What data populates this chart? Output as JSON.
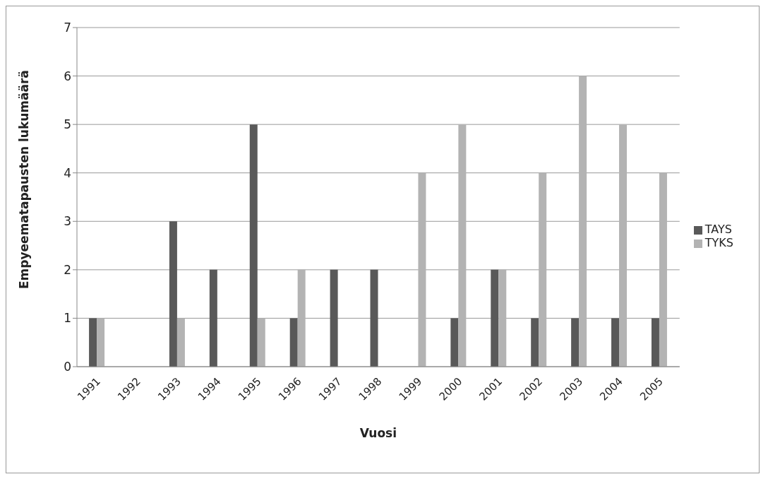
{
  "chart_data": {
    "type": "bar",
    "xlabel": "Vuosi",
    "ylabel": "Empyeematapausten lukumäärä",
    "categories": [
      "1991",
      "1992",
      "1993",
      "1994",
      "1995",
      "1996",
      "1997",
      "1998",
      "1999",
      "2000",
      "2001",
      "2002",
      "2003",
      "2004",
      "2005"
    ],
    "series": [
      {
        "name": "TAYS",
        "color": "#595959",
        "values": [
          1,
          0,
          3,
          2,
          5,
          1,
          2,
          2,
          0,
          1,
          2,
          1,
          1,
          1,
          1
        ]
      },
      {
        "name": "TYKS",
        "color": "#b3b3b3",
        "values": [
          1,
          0,
          1,
          0,
          1,
          2,
          0,
          0,
          4,
          5,
          2,
          4,
          6,
          5,
          4
        ]
      }
    ],
    "ylim": [
      0,
      7
    ],
    "yticks": [
      0,
      1,
      2,
      3,
      4,
      5,
      6,
      7
    ],
    "grid": "y",
    "legend": "right"
  }
}
